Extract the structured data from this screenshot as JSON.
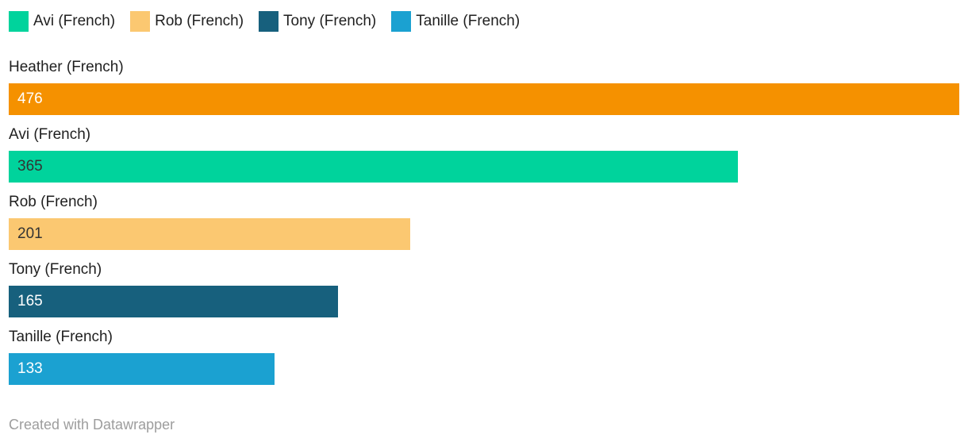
{
  "legend": {
    "items": [
      {
        "label": "Avi (French)",
        "color": "#00d39c"
      },
      {
        "label": "Rob (French)",
        "color": "#fbc871"
      },
      {
        "label": "Tony (French)",
        "color": "#17607d"
      },
      {
        "label": "Tanille (French)",
        "color": "#1ba1d1"
      }
    ]
  },
  "chart_data": {
    "type": "bar",
    "orientation": "horizontal",
    "title": "",
    "categories": [
      "Heather (French)",
      "Avi (French)",
      "Rob (French)",
      "Tony (French)",
      "Tanille (French)"
    ],
    "values": [
      476,
      365,
      201,
      165,
      133
    ],
    "colors": [
      "#f59100",
      "#00d39c",
      "#fbc871",
      "#17607d",
      "#1ba1d1"
    ],
    "value_label_colors": [
      "#ffffff",
      "#333333",
      "#333333",
      "#ffffff",
      "#ffffff"
    ],
    "xlim": [
      0,
      476
    ],
    "grid": false,
    "legend_position": "top",
    "value_labels_inside_bars": true
  },
  "footer": {
    "credit": "Created with Datawrapper"
  }
}
